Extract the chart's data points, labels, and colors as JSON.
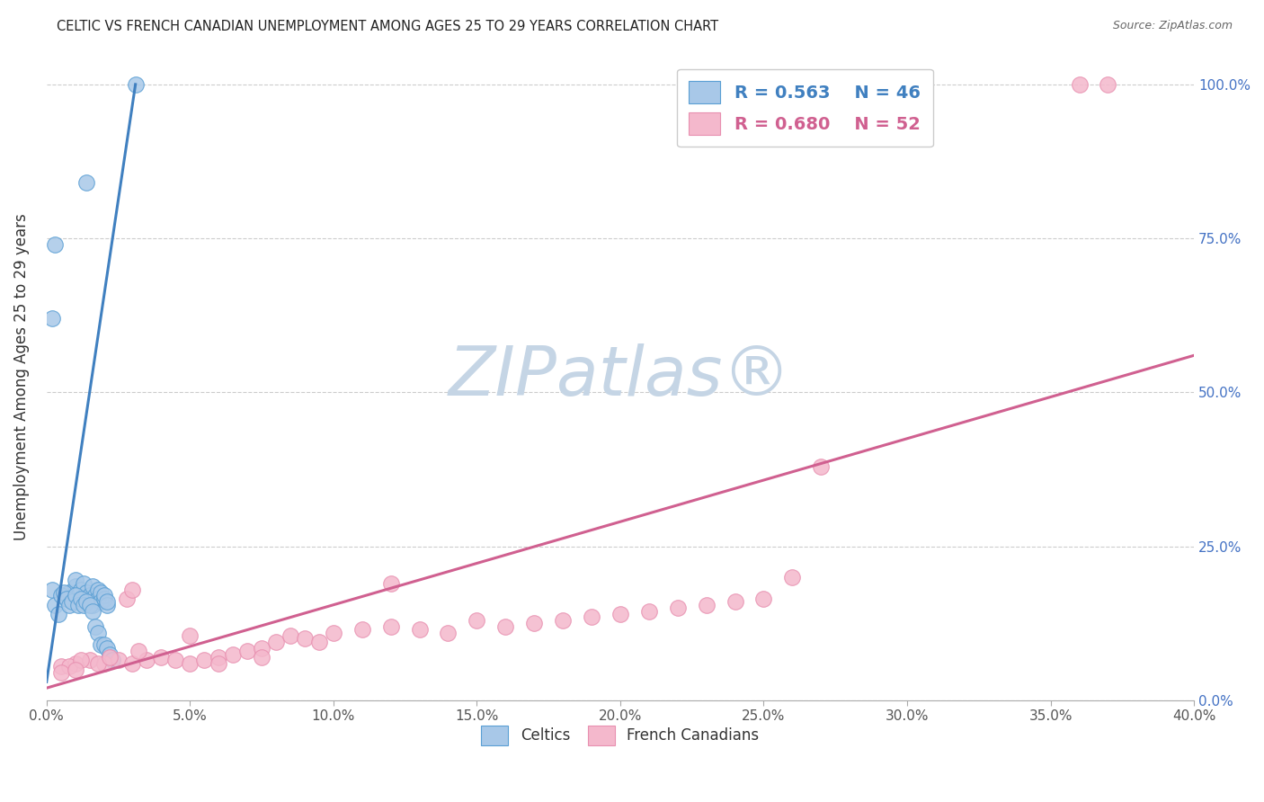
{
  "title": "CELTIC VS FRENCH CANADIAN UNEMPLOYMENT AMONG AGES 25 TO 29 YEARS CORRELATION CHART",
  "source": "Source: ZipAtlas.com",
  "ylabel_label": "Unemployment Among Ages 25 to 29 years",
  "celtics_R": "0.563",
  "celtics_N": "46",
  "french_R": "0.680",
  "french_N": "52",
  "legend_labels": [
    "Celtics",
    "French Canadians"
  ],
  "blue_fill": "#a8c8e8",
  "pink_fill": "#f4b8cc",
  "blue_edge": "#5a9fd4",
  "pink_edge": "#e890b0",
  "blue_line_color": "#4080c0",
  "pink_line_color": "#d06090",
  "title_color": "#222222",
  "source_color": "#666666",
  "raxis_color": "#4472c4",
  "blue_scatter_x": [
    0.008,
    0.01,
    0.01,
    0.011,
    0.012,
    0.013,
    0.014,
    0.015,
    0.015,
    0.016,
    0.016,
    0.017,
    0.018,
    0.018,
    0.019,
    0.019,
    0.02,
    0.02,
    0.021,
    0.021,
    0.002,
    0.003,
    0.004,
    0.005,
    0.006,
    0.007,
    0.008,
    0.009,
    0.01,
    0.011,
    0.012,
    0.013,
    0.014,
    0.015,
    0.016,
    0.017,
    0.018,
    0.019,
    0.02,
    0.021,
    0.022,
    0.023,
    0.002,
    0.003,
    0.014,
    0.031
  ],
  "blue_scatter_y": [
    0.175,
    0.185,
    0.195,
    0.17,
    0.18,
    0.19,
    0.175,
    0.165,
    0.17,
    0.185,
    0.155,
    0.17,
    0.18,
    0.165,
    0.175,
    0.16,
    0.165,
    0.17,
    0.155,
    0.16,
    0.18,
    0.155,
    0.14,
    0.17,
    0.175,
    0.165,
    0.155,
    0.16,
    0.17,
    0.155,
    0.165,
    0.155,
    0.16,
    0.155,
    0.145,
    0.12,
    0.11,
    0.09,
    0.09,
    0.085,
    0.075,
    0.065,
    0.62,
    0.74,
    0.84,
    1.0
  ],
  "pink_scatter_x": [
    0.005,
    0.01,
    0.015,
    0.02,
    0.025,
    0.03,
    0.035,
    0.04,
    0.045,
    0.05,
    0.055,
    0.06,
    0.065,
    0.07,
    0.075,
    0.08,
    0.085,
    0.09,
    0.095,
    0.1,
    0.11,
    0.12,
    0.13,
    0.14,
    0.15,
    0.16,
    0.17,
    0.18,
    0.19,
    0.2,
    0.21,
    0.22,
    0.23,
    0.24,
    0.25,
    0.008,
    0.012,
    0.018,
    0.022,
    0.028,
    0.032,
    0.05,
    0.06,
    0.075,
    0.12,
    0.005,
    0.01,
    0.03,
    0.26,
    0.27,
    0.36,
    0.37
  ],
  "pink_scatter_y": [
    0.055,
    0.06,
    0.065,
    0.06,
    0.065,
    0.06,
    0.065,
    0.07,
    0.065,
    0.06,
    0.065,
    0.07,
    0.075,
    0.08,
    0.085,
    0.095,
    0.105,
    0.1,
    0.095,
    0.11,
    0.115,
    0.12,
    0.115,
    0.11,
    0.13,
    0.12,
    0.125,
    0.13,
    0.135,
    0.14,
    0.145,
    0.15,
    0.155,
    0.16,
    0.165,
    0.055,
    0.065,
    0.06,
    0.07,
    0.165,
    0.08,
    0.105,
    0.06,
    0.07,
    0.19,
    0.045,
    0.05,
    0.18,
    0.2,
    0.38,
    1.0,
    1.0
  ],
  "blue_line_x": [
    0.0,
    0.031
  ],
  "blue_line_y": [
    0.03,
    1.0
  ],
  "pink_line_x": [
    0.0,
    0.4
  ],
  "pink_line_y": [
    0.02,
    0.56
  ],
  "xlim": [
    0.0,
    0.4
  ],
  "ylim": [
    0.0,
    1.05
  ],
  "x_tick_vals": [
    0.0,
    0.05,
    0.1,
    0.15,
    0.2,
    0.25,
    0.3,
    0.35,
    0.4
  ],
  "x_tick_labels": [
    "0.0%",
    "5.0%",
    "10.0%",
    "15.0%",
    "20.0%",
    "25.0%",
    "30.0%",
    "35.0%",
    "40.0%"
  ],
  "y_tick_vals": [
    0.0,
    0.25,
    0.5,
    0.75,
    1.0
  ],
  "y_tick_labels": [
    "0.0%",
    "25.0%",
    "50.0%",
    "75.0%",
    "100.0%"
  ],
  "figsize": [
    14.06,
    8.92
  ],
  "dpi": 100
}
